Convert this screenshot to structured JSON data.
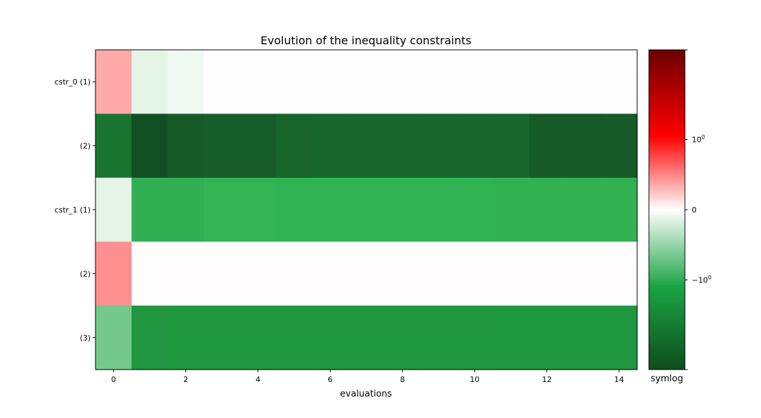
{
  "chart_data": {
    "type": "heatmap",
    "title": "Evolution of the inequality constraints",
    "xlabel": "evaluations",
    "ylabel": "",
    "x_ticks": [
      "0",
      "2",
      "4",
      "6",
      "8",
      "10",
      "12",
      "14"
    ],
    "x_range": [
      -0.5,
      14.5
    ],
    "rows": [
      "cstr_0 (1)",
      "(2)",
      "cstr_1 (1)",
      "(2)",
      "(3)"
    ],
    "columns": [
      0,
      1,
      2,
      3,
      4,
      5,
      6,
      7,
      8,
      9,
      10,
      11,
      12,
      13,
      14
    ],
    "colors": [
      [
        "#fda9a9",
        "#e4f4e7",
        "#f0f8f2",
        "#fdfdfd",
        "#fdfdfd",
        "#fdfdfd",
        "#fdfdfd",
        "#fdfdfd",
        "#fdfdfd",
        "#fdfdfd",
        "#fdfdfd",
        "#fdfdfd",
        "#fdfdfd",
        "#fdfdfd",
        "#fdfdfd"
      ],
      [
        "#1a7530",
        "#124f23",
        "#155a27",
        "#165d29",
        "#165d29",
        "#17652b",
        "#17672c",
        "#17672c",
        "#17672c",
        "#17672c",
        "#17662c",
        "#17662c",
        "#155a27",
        "#155a27",
        "#155a27"
      ],
      [
        "#e4f4e7",
        "#30b052",
        "#30b052",
        "#32b454",
        "#32b454",
        "#2fb353",
        "#2fb353",
        "#2fb353",
        "#2fb353",
        "#2fb353",
        "#2fb353",
        "#31b152",
        "#31b152",
        "#31b152",
        "#31b152"
      ],
      [
        "#fd8f8f",
        "#fefcfc",
        "#fefcfc",
        "#fefcfc",
        "#fefcfc",
        "#fefcfc",
        "#fefcfc",
        "#fefcfc",
        "#fefcfc",
        "#fefcfc",
        "#fefcfc",
        "#fefcfc",
        "#fefcfc",
        "#fefcfc",
        "#fefcfc"
      ],
      [
        "#74c98a",
        "#1f963f",
        "#1f973f",
        "#1f973f",
        "#1f973f",
        "#1f973f",
        "#1f973f",
        "#1f973f",
        "#1f973f",
        "#1f973f",
        "#1f973f",
        "#1f9640",
        "#1f9640",
        "#1f9640",
        "#1f9640"
      ]
    ],
    "colorbar": {
      "scale": "symlog",
      "label": "symlog",
      "tick_labels": [
        {
          "base": "10",
          "sup": "0",
          "value": 1
        },
        {
          "base": "0",
          "sup": "",
          "value": 0
        },
        {
          "base": "−10",
          "sup": "0",
          "value": -1
        }
      ],
      "colors": [
        "#0e4d1d",
        "#1aa544",
        "#ffffff",
        "#ff0000",
        "#6b0000"
      ]
    },
    "grid": false
  }
}
